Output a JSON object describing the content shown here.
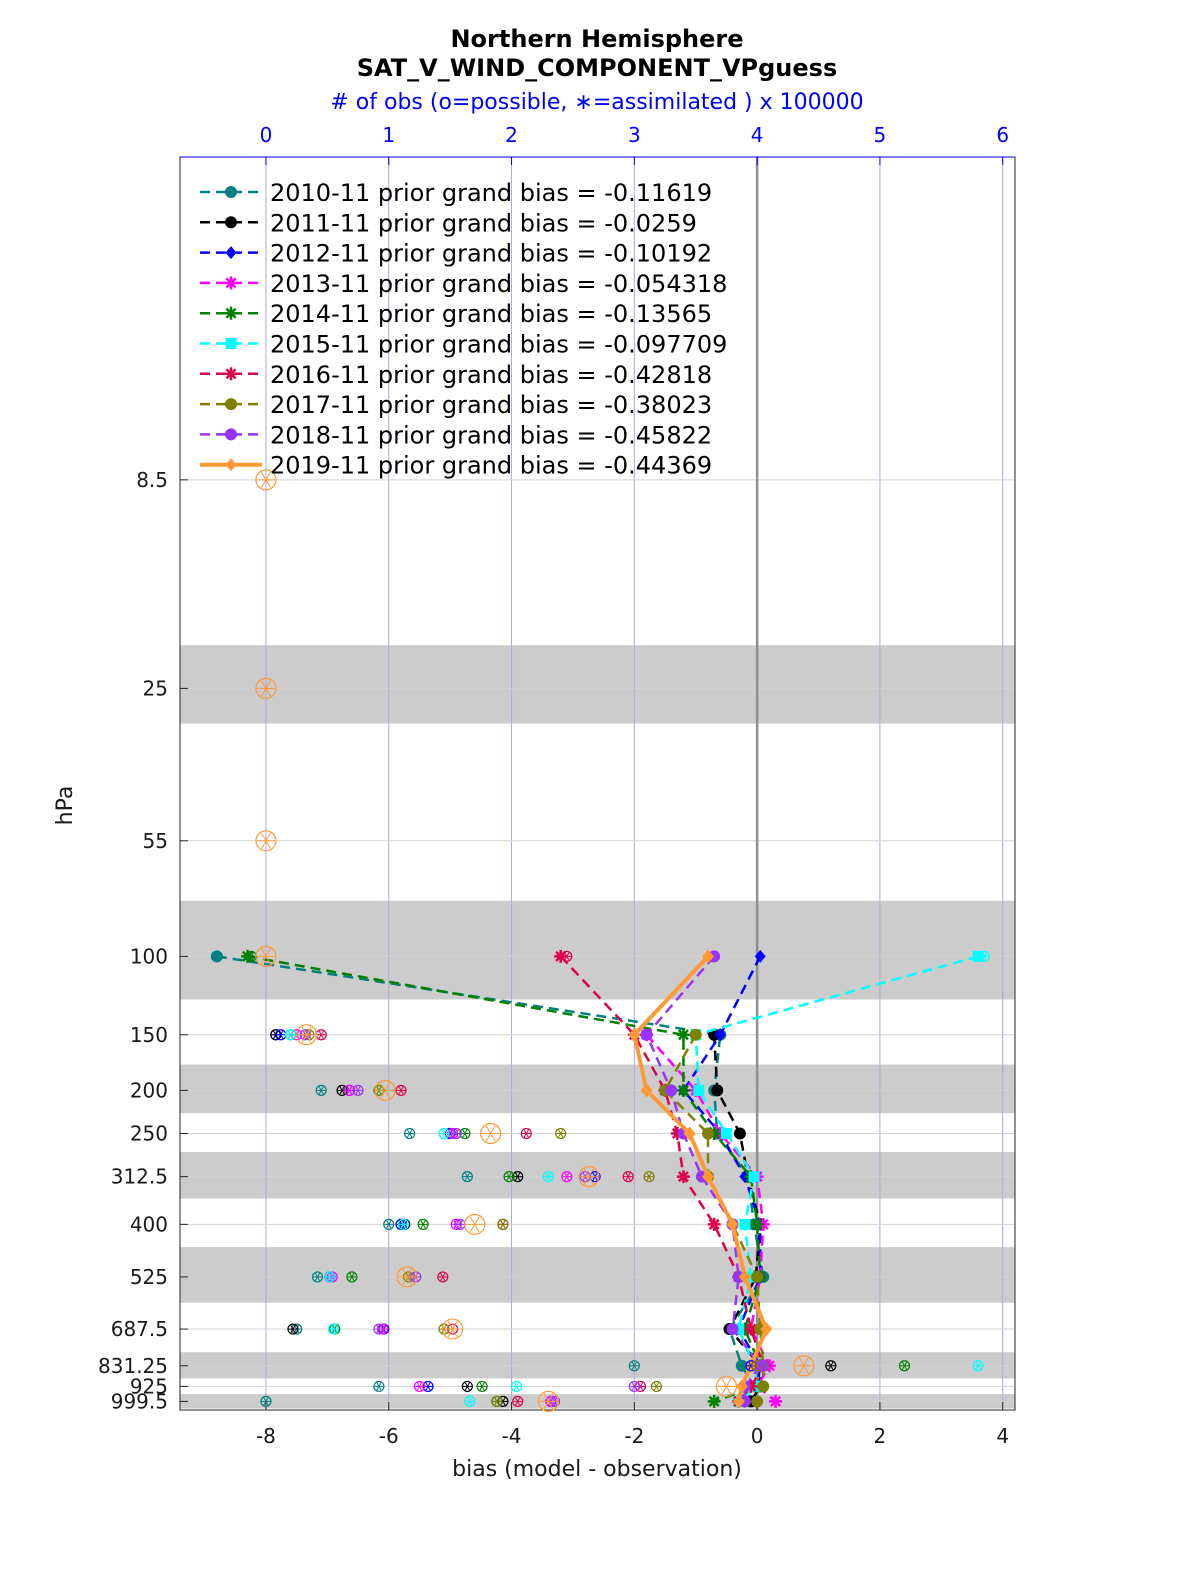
{
  "chart_data": {
    "type": "line",
    "title": "Northern Hemisphere",
    "subtitle": "SAT_V_WIND_COMPONENT_VPguess",
    "top_axis_label": "# of obs (o=possible, ∗=assimilated ) x 100000",
    "xlabel": "bias (model - observation)",
    "ylabel": "hPa",
    "xlim": [
      -9.4,
      4.2
    ],
    "x_ticks": [
      -8,
      -6,
      -4,
      -2,
      0,
      2,
      4
    ],
    "x_tick_labels": [
      "-8",
      "-6",
      "-4",
      "-2",
      "0",
      "2",
      "4"
    ],
    "top_xlim": [
      -0.7,
      6.1
    ],
    "top_ticks": [
      0,
      1,
      2,
      3,
      4,
      5,
      6
    ],
    "top_tick_labels": [
      "0",
      "1",
      "2",
      "3",
      "4",
      "5",
      "6"
    ],
    "y_scale": "log, inverted",
    "levels": [
      8.5,
      25,
      55,
      100,
      150,
      200,
      250,
      312.5,
      400,
      525,
      687.5,
      831.25,
      925,
      999.5
    ],
    "level_labels": [
      "8.5",
      "25",
      "55",
      "100",
      "150",
      "200",
      "250",
      "312.5",
      "400",
      "525",
      "687.5",
      "831.25",
      "925",
      "999.5"
    ],
    "shaded_layers": [
      [
        20,
        30
      ],
      [
        75,
        125
      ],
      [
        175,
        225
      ],
      [
        275,
        350
      ],
      [
        450,
        600
      ],
      [
        775,
        887.5
      ],
      [
        962.5,
        1037
      ]
    ],
    "grid": true,
    "legend_position": "upper-left",
    "series": [
      {
        "name": "2010-11",
        "legend": "2010-11 prior grand bias = -0.11619",
        "color": "#008080",
        "marker": "circle",
        "bias": [
          null,
          null,
          null,
          -8.8,
          -0.6,
          -0.7,
          -0.65,
          -0.15,
          -0.05,
          0.1,
          -0.45,
          -0.25,
          -0.05,
          -0.3
        ],
        "obs_possible": [
          null,
          null,
          null,
          null,
          0.08,
          0.45,
          1.17,
          1.64,
          1.0,
          0.42,
          0.25,
          3.0,
          0.92,
          0.0
        ],
        "obs_assimilated": [
          null,
          null,
          null,
          null,
          0.08,
          0.45,
          1.17,
          1.64,
          1.0,
          0.42,
          0.25,
          3.0,
          0.92,
          0.0
        ]
      },
      {
        "name": "2011-11",
        "legend": "2011-11 prior grand bias = -0.0259",
        "color": "#000000",
        "marker": "circle",
        "bias": [
          null,
          null,
          null,
          null,
          -0.7,
          -0.65,
          -0.28,
          -0.15,
          0.05,
          -0.02,
          -0.45,
          0.05,
          0.05,
          -0.1
        ],
        "obs_possible": [
          null,
          null,
          null,
          null,
          0.08,
          0.62,
          1.5,
          2.05,
          1.13,
          0.52,
          0.22,
          4.6,
          1.64,
          1.93
        ],
        "obs_assimilated": [
          null,
          null,
          null,
          null,
          0.08,
          0.62,
          1.5,
          2.05,
          1.13,
          0.52,
          0.22,
          4.6,
          1.64,
          1.93
        ]
      },
      {
        "name": "2012-11",
        "legend": "2012-11 prior grand bias = -0.10192",
        "color": "#0000ff",
        "marker": "diamond",
        "bias": [
          null,
          null,
          null,
          0.05,
          -0.6,
          -1.2,
          -0.6,
          -0.2,
          0.05,
          0.05,
          -0.3,
          0.05,
          0.0,
          -0.2
        ],
        "obs_possible": [
          null,
          null,
          null,
          null,
          0.12,
          0.68,
          1.5,
          2.68,
          1.1,
          0.52,
          0.96,
          3.95,
          1.32,
          2.32
        ],
        "obs_assimilated": [
          null,
          null,
          null,
          null,
          0.12,
          0.68,
          1.5,
          2.68,
          1.1,
          0.52,
          0.96,
          3.95,
          1.32,
          2.32
        ]
      },
      {
        "name": "2013-11",
        "legend": "2013-11 prior grand bias = -0.054318",
        "color": "#ff00ff",
        "marker": "star",
        "bias": [
          null,
          null,
          null,
          null,
          -1.8,
          -1.0,
          -0.6,
          0.0,
          0.1,
          0.05,
          -0.1,
          0.2,
          0.0,
          0.3
        ],
        "obs_possible": [
          null,
          null,
          null,
          null,
          0.25,
          0.68,
          1.52,
          2.45,
          1.55,
          0.54,
          0.95,
          4.0,
          1.25,
          2.32
        ],
        "obs_assimilated": [
          null,
          null,
          null,
          null,
          0.25,
          0.68,
          1.52,
          2.45,
          1.55,
          0.54,
          0.95,
          4.0,
          1.25,
          2.32
        ]
      },
      {
        "name": "2014-11",
        "legend": "2014-11 prior grand bias = -0.13565",
        "color": "#008000",
        "marker": "star",
        "bias": [
          null,
          null,
          null,
          -8.3,
          -1.2,
          -1.2,
          -0.7,
          -0.1,
          0.0,
          0.05,
          -0.2,
          0.05,
          0.0,
          -0.7
        ],
        "obs_possible": [
          null,
          null,
          null,
          -0.12,
          0.2,
          0.92,
          1.62,
          1.98,
          1.28,
          0.7,
          0.56,
          5.2,
          1.76,
          1.88
        ],
        "obs_assimilated": [
          null,
          null,
          null,
          -0.12,
          0.2,
          0.92,
          1.62,
          1.98,
          1.28,
          0.7,
          0.56,
          5.2,
          1.76,
          1.88
        ]
      },
      {
        "name": "2015-11",
        "legend": "2015-11 prior grand bias = -0.097709",
        "color": "#00ffff",
        "marker": "square",
        "bias": [
          null,
          null,
          null,
          3.6,
          -1.0,
          -0.95,
          -0.5,
          -0.05,
          -0.2,
          -0.1,
          -0.3,
          -0.05,
          0.0,
          -0.3
        ],
        "obs_possible": [
          null,
          null,
          null,
          5.85,
          0.2,
          0.92,
          1.45,
          2.3,
          1.12,
          0.52,
          0.55,
          5.8,
          2.04,
          1.66
        ],
        "obs_assimilated": [
          null,
          null,
          null,
          5.85,
          0.2,
          0.92,
          1.45,
          2.3,
          1.12,
          0.52,
          0.55,
          5.8,
          2.04,
          1.66
        ]
      },
      {
        "name": "2016-11",
        "legend": "2016-11 prior grand bias = -0.42818",
        "color": "#e0004c",
        "marker": "star",
        "bias": [
          null,
          null,
          null,
          -3.2,
          -2.0,
          -1.5,
          -1.3,
          -1.2,
          -0.7,
          -0.3,
          -0.1,
          0.1,
          -0.1,
          -0.3
        ],
        "obs_possible": [
          null,
          null,
          null,
          2.45,
          0.45,
          1.1,
          2.12,
          2.95,
          1.93,
          1.44,
          1.52,
          4.0,
          3.05,
          2.05
        ],
        "obs_assimilated": [
          null,
          null,
          null,
          2.45,
          0.45,
          1.1,
          2.12,
          2.95,
          1.93,
          1.44,
          1.52,
          4.0,
          3.05,
          2.05
        ]
      },
      {
        "name": "2017-11",
        "legend": "2017-11 prior grand bias = -0.38023",
        "color": "#808000",
        "marker": "circle",
        "bias": [
          null,
          null,
          null,
          null,
          -1.0,
          -1.5,
          -0.8,
          -0.8,
          -0.4,
          0.0,
          0.05,
          0.1,
          0.1,
          0.0
        ],
        "obs_possible": [
          null,
          null,
          null,
          null,
          0.35,
          0.92,
          2.4,
          3.12,
          1.93,
          1.16,
          1.45,
          4.0,
          3.18,
          1.88
        ],
        "obs_assimilated": [
          null,
          null,
          null,
          null,
          0.35,
          0.92,
          2.4,
          3.12,
          1.93,
          1.16,
          1.45,
          4.0,
          3.18,
          1.88
        ]
      },
      {
        "name": "2018-11",
        "legend": "2018-11 prior grand bias = -0.45822",
        "color": "#9933ff",
        "marker": "circle",
        "bias": [
          null,
          null,
          null,
          -0.7,
          -1.8,
          -1.4,
          -1.2,
          -0.9,
          -0.4,
          -0.3,
          -0.4,
          0.05,
          -0.2,
          -0.2
        ],
        "obs_possible": [
          null,
          null,
          null,
          null,
          0.32,
          0.75,
          1.55,
          2.6,
          1.58,
          1.22,
          0.92,
          4.05,
          3.0,
          2.35
        ],
        "obs_assimilated": [
          null,
          null,
          null,
          null,
          0.32,
          0.75,
          1.55,
          2.6,
          1.58,
          1.22,
          0.92,
          4.05,
          3.0,
          2.35
        ]
      },
      {
        "name": "2019-11",
        "legend": "2019-11 prior grand bias = -0.44369",
        "color": "#ff9933",
        "marker": "diamond",
        "bias": [
          null,
          null,
          null,
          -0.8,
          -2.0,
          -1.8,
          -1.1,
          -0.8,
          -0.4,
          -0.2,
          0.15,
          -0.1,
          -0.25,
          -0.3
        ],
        "obs_possible": [
          0.0,
          0.0,
          0.0,
          0.0,
          0.33,
          0.97,
          1.83,
          2.63,
          1.7,
          1.15,
          1.52,
          4.38,
          3.75,
          2.3
        ],
        "obs_assimilated": [
          0.0,
          0.0,
          0.0,
          0.0,
          0.33,
          0.97,
          1.83,
          2.63,
          1.7,
          1.15,
          1.52,
          4.38,
          3.75,
          2.3
        ]
      }
    ]
  }
}
